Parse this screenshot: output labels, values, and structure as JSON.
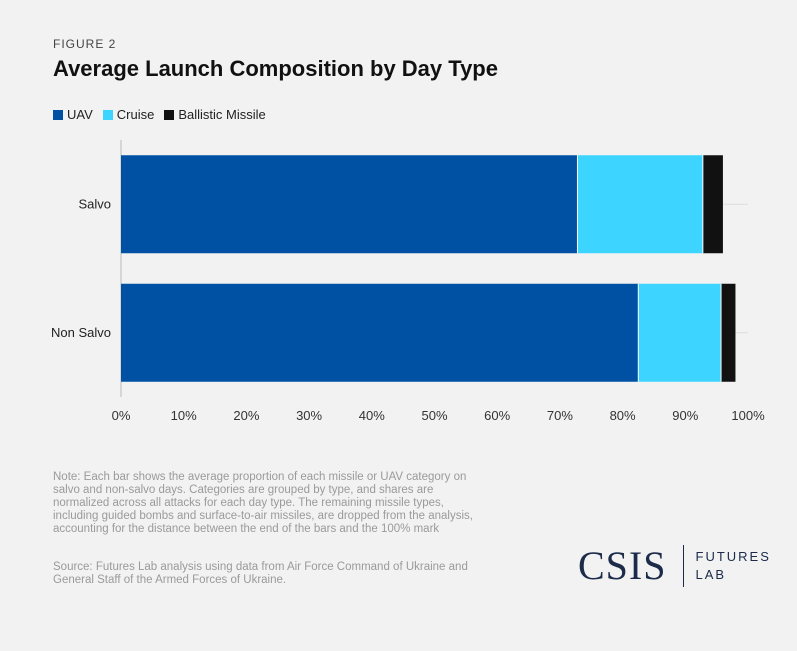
{
  "figure_label": "FIGURE 2",
  "note": "Note: Each bar shows the average proportion of each missile or UAV category on salvo and non-salvo days. Categories are grouped by type, and shares are normalized across all attacks for each day type. The remaining missile types, including guided bombs and surface-to-air missiles, are dropped from the analysis, accounting for the distance between the end of the bars and the 100% mark",
  "source": "Source: Futures Lab analysis using data from Air Force Command of Ukraine and General Staff of the Armed Forces of Ukraine.",
  "logo": {
    "main": "CSIS",
    "sub_line1": "FUTURES",
    "sub_line2": "LAB"
  },
  "colors": {
    "uav": "#0051a3",
    "cruise": "#3dd5ff",
    "ballistic": "#111111",
    "grid": "#dddddd"
  },
  "chart_data": {
    "type": "bar",
    "orientation": "horizontal",
    "stacked": true,
    "title": "Average Launch Composition by Day Type",
    "categories": [
      "Salvo",
      "Non Salvo"
    ],
    "series": [
      {
        "name": "UAV",
        "values": [
          72.8,
          82.5
        ]
      },
      {
        "name": "Cruise",
        "values": [
          20.0,
          13.2
        ]
      },
      {
        "name": "Ballistic Missile",
        "values": [
          3.2,
          2.3
        ]
      }
    ],
    "xlim": [
      0,
      100
    ],
    "xticks": [
      "0%",
      "10%",
      "20%",
      "30%",
      "40%",
      "50%",
      "60%",
      "70%",
      "80%",
      "90%",
      "100%"
    ],
    "xlabel": "",
    "ylabel": "",
    "grid": true,
    "legend_position": "top-left"
  }
}
